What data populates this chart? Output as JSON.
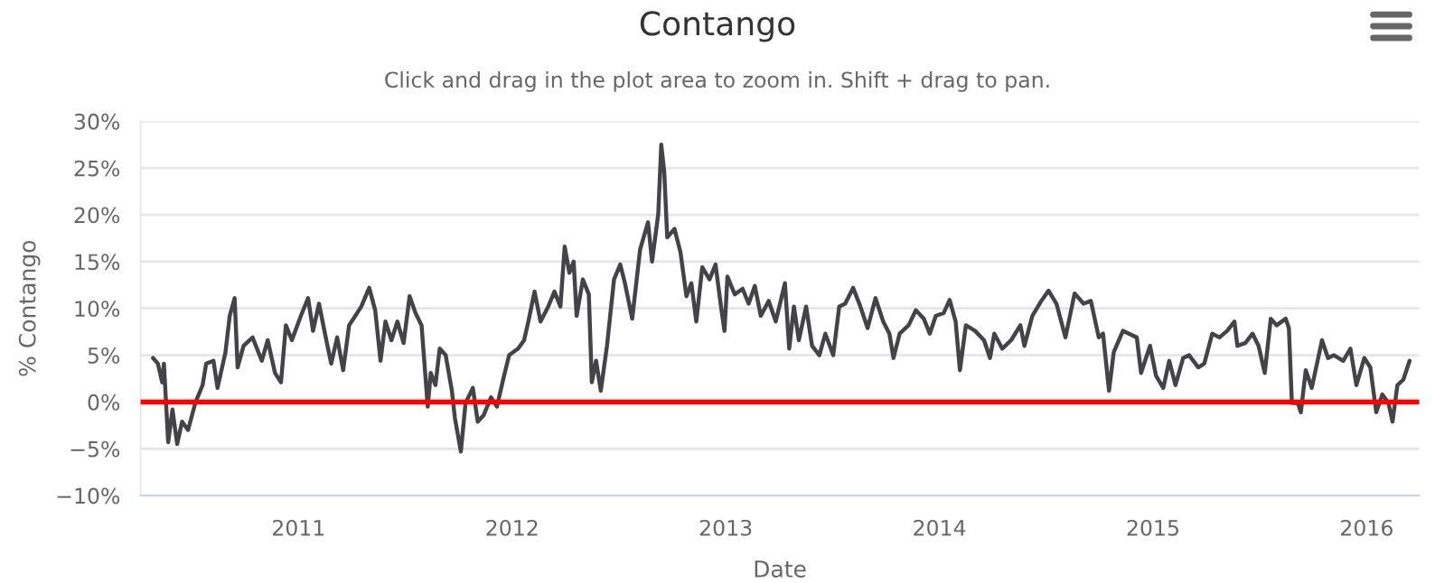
{
  "chart_data": {
    "type": "line",
    "title": "Contango",
    "subtitle": "Click and drag in the plot area to zoom in. Shift + drag to pan.",
    "xlabel": "Date",
    "ylabel": "% Contango",
    "xlim": [
      2010.261,
      2016.246
    ],
    "xticks": [
      2011,
      2012,
      2013,
      2014,
      2015,
      2016
    ],
    "ylim": [
      -10,
      30
    ],
    "yticks": [
      {
        "value": -10,
        "label": "−10%"
      },
      {
        "value": -5,
        "label": "−5%"
      },
      {
        "value": 0,
        "label": "0%"
      },
      {
        "value": 5,
        "label": "5%"
      },
      {
        "value": 10,
        "label": "10%"
      },
      {
        "value": 15,
        "label": "15%"
      },
      {
        "value": 20,
        "label": "20%"
      },
      {
        "value": 25,
        "label": "25%"
      },
      {
        "value": 30,
        "label": "30%"
      }
    ],
    "grid": "y",
    "legend": false,
    "marker": "none",
    "line_style": "solid",
    "ref_lines": [
      {
        "axis": "y",
        "value": 0,
        "color": "#ff0000"
      }
    ],
    "series": [
      {
        "color": "#434348",
        "x": [
          2010.319,
          2010.342,
          2010.362,
          2010.37,
          2010.39,
          2010.41,
          2010.432,
          2010.455,
          2010.483,
          2010.517,
          2010.551,
          2010.568,
          2010.602,
          2010.621,
          2010.658,
          2010.678,
          2010.701,
          2010.715,
          2010.743,
          2010.785,
          2010.828,
          2010.856,
          2010.89,
          2010.918,
          2010.941,
          2010.969,
          2011.011,
          2011.045,
          2011.068,
          2011.096,
          2011.124,
          2011.153,
          2011.181,
          2011.209,
          2011.237,
          2011.266,
          2011.294,
          2011.331,
          2011.359,
          2011.384,
          2011.407,
          2011.435,
          2011.463,
          2011.492,
          2011.52,
          2011.548,
          2011.576,
          2011.605,
          2011.619,
          2011.641,
          2011.661,
          2011.689,
          2011.718,
          2011.732,
          2011.76,
          2011.782,
          2011.816,
          2011.839,
          2011.867,
          2011.901,
          2011.929,
          2011.958,
          2011.986,
          2012.028,
          2012.056,
          2012.076,
          2012.105,
          2012.133,
          2012.169,
          2012.198,
          2012.226,
          2012.246,
          2012.268,
          2012.288,
          2012.302,
          2012.331,
          2012.359,
          2012.373,
          2012.393,
          2012.415,
          2012.444,
          2012.477,
          2012.506,
          2012.528,
          2012.562,
          2012.599,
          2012.636,
          2012.655,
          2012.684,
          2012.698,
          2012.712,
          2012.726,
          2012.76,
          2012.788,
          2012.816,
          2012.839,
          2012.862,
          2012.89,
          2012.924,
          2012.952,
          2012.98,
          2012.994,
          2013.008,
          2013.042,
          2013.079,
          2013.107,
          2013.136,
          2013.164,
          2013.201,
          2013.234,
          2013.277,
          2013.297,
          2013.319,
          2013.342,
          2013.376,
          2013.404,
          2013.438,
          2013.466,
          2013.503,
          2013.531,
          2013.559,
          2013.596,
          2013.63,
          2013.664,
          2013.701,
          2013.737,
          2013.766,
          2013.785,
          2013.814,
          2013.856,
          2013.89,
          2013.927,
          2013.955,
          2013.983,
          2014.02,
          2014.048,
          2014.076,
          2014.096,
          2014.124,
          2014.167,
          2014.209,
          2014.237,
          2014.257,
          2014.294,
          2014.336,
          2014.379,
          2014.398,
          2014.435,
          2014.477,
          2014.511,
          2014.548,
          2014.59,
          2014.633,
          2014.675,
          2014.709,
          2014.746,
          2014.766,
          2014.794,
          2014.816,
          2014.859,
          2014.887,
          2014.924,
          2014.944,
          2014.986,
          2015.014,
          2015.048,
          2015.076,
          2015.105,
          2015.141,
          2015.169,
          2015.212,
          2015.24,
          2015.277,
          2015.311,
          2015.347,
          2015.381,
          2015.395,
          2015.432,
          2015.466,
          2015.494,
          2015.523,
          2015.551,
          2015.579,
          2015.621,
          2015.636,
          2015.65,
          2015.678,
          2015.692,
          2015.715,
          2015.743,
          2015.791,
          2015.819,
          2015.847,
          2015.89,
          2015.924,
          2015.952,
          2015.989,
          2016.017,
          2016.045,
          2016.073,
          2016.102,
          2016.121,
          2016.144,
          2016.172,
          2016.201
        ],
        "values": [
          4.7,
          4.1,
          2.1,
          4.1,
          -4.3,
          -0.8,
          -4.5,
          -2.1,
          -3.0,
          -0.1,
          1.8,
          4.1,
          4.4,
          1.5,
          5.3,
          9.2,
          11.1,
          3.7,
          6.0,
          6.9,
          4.4,
          6.6,
          3.1,
          2.1,
          8.2,
          6.6,
          9.2,
          11.1,
          7.6,
          10.5,
          7.3,
          4.1,
          6.9,
          3.4,
          8.2,
          9.2,
          10.2,
          12.2,
          9.8,
          4.4,
          8.6,
          6.6,
          8.6,
          6.3,
          11.3,
          9.5,
          8.2,
          -0.5,
          3.1,
          1.8,
          5.7,
          5.0,
          1.2,
          -1.7,
          -5.3,
          -0.1,
          1.5,
          -2.1,
          -1.4,
          0.5,
          -0.5,
          2.4,
          5.0,
          5.7,
          6.6,
          8.6,
          11.8,
          8.6,
          10.2,
          11.8,
          10.2,
          16.6,
          13.8,
          15.0,
          9.2,
          13.1,
          11.5,
          2.1,
          4.4,
          1.2,
          6.0,
          13.1,
          14.7,
          12.7,
          8.9,
          16.3,
          19.2,
          15.0,
          20.1,
          27.5,
          24.6,
          17.6,
          18.5,
          16.0,
          11.3,
          12.7,
          8.6,
          14.4,
          13.1,
          14.7,
          9.8,
          7.6,
          13.4,
          11.5,
          12.1,
          10.5,
          12.4,
          9.2,
          10.8,
          8.6,
          12.7,
          5.7,
          10.2,
          6.6,
          10.2,
          6.0,
          5.0,
          7.3,
          5.0,
          10.2,
          10.5,
          12.2,
          10.2,
          7.9,
          11.1,
          8.6,
          7.3,
          4.7,
          7.3,
          8.2,
          9.8,
          8.9,
          7.3,
          9.2,
          9.5,
          10.9,
          8.6,
          3.4,
          8.2,
          7.6,
          6.6,
          4.7,
          7.3,
          5.7,
          6.6,
          8.2,
          6.0,
          9.2,
          10.8,
          11.9,
          10.5,
          6.9,
          11.6,
          10.5,
          10.8,
          6.9,
          7.3,
          1.2,
          5.3,
          7.6,
          7.3,
          6.9,
          3.1,
          6.0,
          2.8,
          1.5,
          4.4,
          1.8,
          4.7,
          5.0,
          3.7,
          4.1,
          7.3,
          6.9,
          7.6,
          8.6,
          6.0,
          6.3,
          7.3,
          6.0,
          3.1,
          8.9,
          8.2,
          8.9,
          7.9,
          -0.1,
          -0.1,
          -1.1,
          3.4,
          1.5,
          6.6,
          4.7,
          5.0,
          4.4,
          5.7,
          1.8,
          4.7,
          3.7,
          -1.1,
          0.8,
          -0.1,
          -2.1,
          1.8,
          2.4,
          4.4
        ]
      }
    ]
  }
}
